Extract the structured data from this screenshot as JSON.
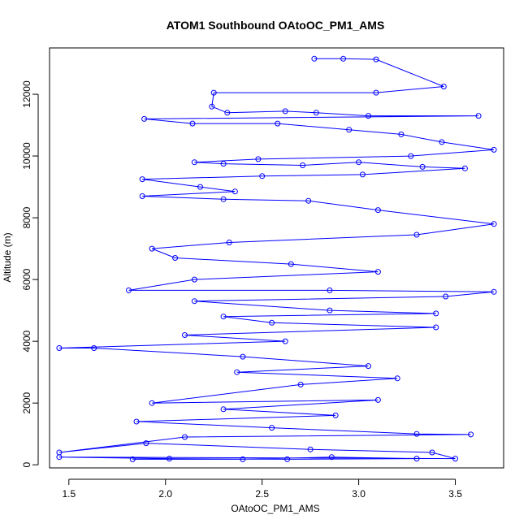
{
  "chart_data": {
    "type": "scatter",
    "title": "ATOM1 Southbound OAtoOC_PM1_AMS",
    "xlabel": "OAtoOC_PM1_AMS",
    "ylabel": "Altitude (m)",
    "xlim": [
      1.4,
      3.75
    ],
    "ylim": [
      -100,
      13500
    ],
    "xticks": [
      "1.5",
      "2.0",
      "2.5",
      "3.0",
      "3.5"
    ],
    "yticks": [
      "0",
      "2000",
      "4000",
      "6000",
      "8000",
      "10000",
      "12000"
    ],
    "grid": false,
    "legend": "none",
    "series": [
      {
        "marker": "circle-open",
        "connected": true,
        "points": [
          [
            2.77,
            13150
          ],
          [
            2.92,
            13150
          ],
          [
            3.09,
            13130
          ],
          [
            3.44,
            12250
          ],
          [
            3.09,
            12050
          ],
          [
            2.25,
            12050
          ],
          [
            2.24,
            11600
          ],
          [
            2.32,
            11400
          ],
          [
            2.62,
            11450
          ],
          [
            2.78,
            11400
          ],
          [
            3.05,
            11300
          ],
          [
            3.62,
            11300
          ],
          [
            1.89,
            11200
          ],
          [
            2.14,
            11050
          ],
          [
            2.58,
            11050
          ],
          [
            2.95,
            10850
          ],
          [
            3.22,
            10700
          ],
          [
            3.43,
            10450
          ],
          [
            3.7,
            10200
          ],
          [
            3.27,
            10000
          ],
          [
            2.48,
            9900
          ],
          [
            2.15,
            9800
          ],
          [
            2.3,
            9750
          ],
          [
            2.71,
            9700
          ],
          [
            3.0,
            9800
          ],
          [
            3.33,
            9650
          ],
          [
            3.55,
            9600
          ],
          [
            3.02,
            9400
          ],
          [
            2.5,
            9350
          ],
          [
            1.88,
            9250
          ],
          [
            2.18,
            9000
          ],
          [
            2.36,
            8850
          ],
          [
            1.88,
            8700
          ],
          [
            2.3,
            8600
          ],
          [
            2.74,
            8550
          ],
          [
            3.1,
            8250
          ],
          [
            3.7,
            7800
          ],
          [
            3.3,
            7450
          ],
          [
            2.33,
            7200
          ],
          [
            1.93,
            7000
          ],
          [
            2.05,
            6700
          ],
          [
            2.65,
            6500
          ],
          [
            3.1,
            6250
          ],
          [
            2.15,
            6000
          ],
          [
            1.81,
            5650
          ],
          [
            2.85,
            5650
          ],
          [
            3.7,
            5600
          ],
          [
            3.45,
            5450
          ],
          [
            2.15,
            5300
          ],
          [
            2.85,
            5000
          ],
          [
            3.4,
            4900
          ],
          [
            2.3,
            4800
          ],
          [
            2.55,
            4600
          ],
          [
            3.4,
            4450
          ],
          [
            2.1,
            4200
          ],
          [
            2.62,
            4000
          ],
          [
            1.45,
            3780
          ],
          [
            1.63,
            3780
          ],
          [
            2.4,
            3500
          ],
          [
            3.05,
            3200
          ],
          [
            2.37,
            3000
          ],
          [
            3.2,
            2800
          ],
          [
            2.7,
            2600
          ],
          [
            1.93,
            2000
          ],
          [
            3.1,
            2100
          ],
          [
            2.3,
            1800
          ],
          [
            2.88,
            1600
          ],
          [
            1.85,
            1400
          ],
          [
            2.55,
            1200
          ],
          [
            3.3,
            1000
          ],
          [
            3.58,
            980
          ],
          [
            2.1,
            900
          ],
          [
            1.45,
            400
          ],
          [
            1.9,
            700
          ],
          [
            2.75,
            500
          ],
          [
            3.38,
            400
          ],
          [
            3.5,
            200
          ],
          [
            1.45,
            250
          ],
          [
            2.02,
            200
          ],
          [
            2.63,
            180
          ],
          [
            3.3,
            200
          ],
          [
            2.86,
            250
          ],
          [
            2.4,
            180
          ],
          [
            1.83,
            180
          ]
        ]
      }
    ]
  }
}
